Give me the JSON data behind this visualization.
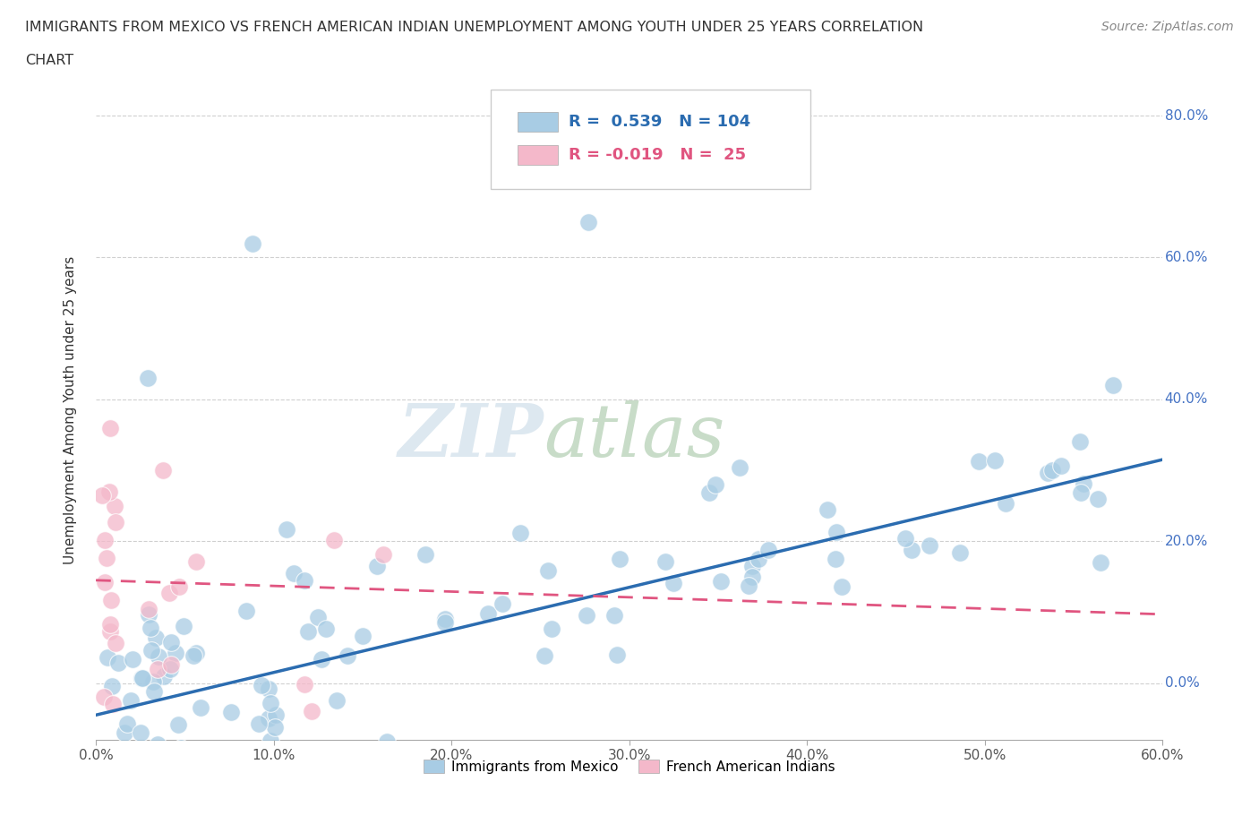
{
  "title_line1": "IMMIGRANTS FROM MEXICO VS FRENCH AMERICAN INDIAN UNEMPLOYMENT AMONG YOUTH UNDER 25 YEARS CORRELATION",
  "title_line2": "CHART",
  "source": "Source: ZipAtlas.com",
  "ylabel": "Unemployment Among Youth under 25 years",
  "watermark_zip": "ZIP",
  "watermark_atlas": "atlas",
  "blue_R": 0.539,
  "blue_N": 104,
  "pink_R": -0.019,
  "pink_N": 25,
  "blue_color": "#a8cce4",
  "pink_color": "#f4b8ca",
  "blue_line_color": "#2b6cb0",
  "pink_line_color": "#e05580",
  "xlim": [
    0.0,
    0.6
  ],
  "ylim": [
    -0.08,
    0.85
  ],
  "xticks": [
    0.0,
    0.1,
    0.2,
    0.3,
    0.4,
    0.5,
    0.6
  ],
  "yticks": [
    0.0,
    0.2,
    0.4,
    0.6,
    0.8
  ],
  "ytick_labels": [
    "0.0%",
    "20.0%",
    "40.0%",
    "60.0%",
    "80.0%"
  ],
  "xtick_labels": [
    "0.0%",
    "10.0%",
    "20.0%",
    "30.0%",
    "40.0%",
    "50.0%",
    "60.0%"
  ],
  "legend_label_blue": "Immigrants from Mexico",
  "legend_label_pink": "French American Indians",
  "background_color": "#ffffff",
  "grid_color": "#d0d0d0",
  "right_tick_color": "#4472c4",
  "blue_line_intercept": -0.045,
  "blue_line_slope": 0.6,
  "pink_line_intercept": 0.145,
  "pink_line_slope": -0.08
}
